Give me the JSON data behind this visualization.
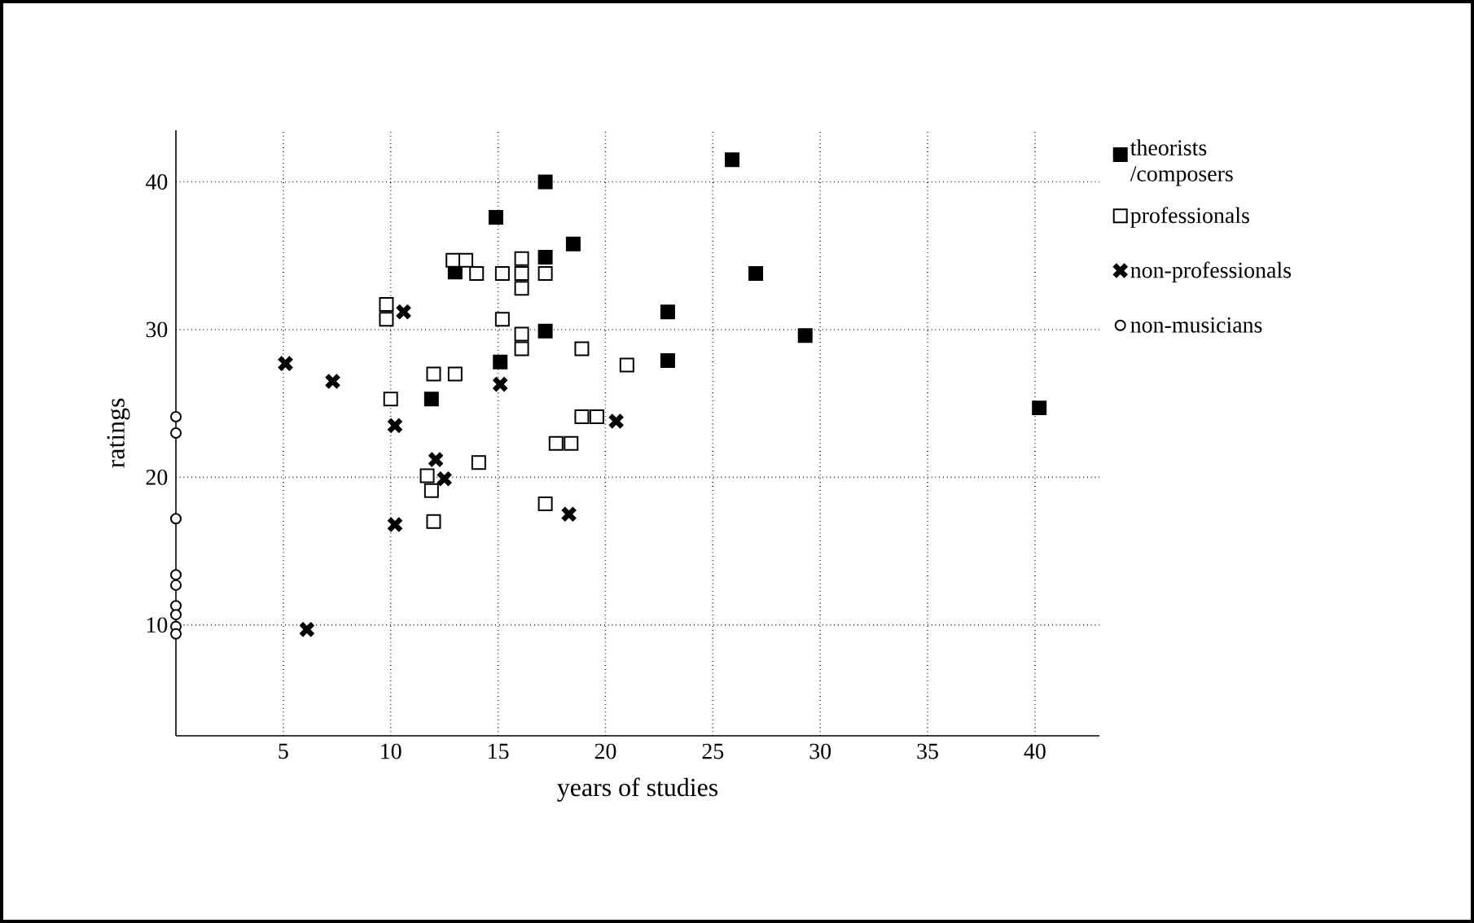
{
  "chart_data": {
    "type": "scatter",
    "xlabel": "years of studies",
    "ylabel": "ratings",
    "xlim": [
      0,
      43
    ],
    "ylim": [
      2.5,
      43.5
    ],
    "xticks": [
      5,
      10,
      15,
      20,
      25,
      30,
      35,
      40
    ],
    "yticks": [
      10,
      20,
      30,
      40
    ],
    "grid": true,
    "legend": "right",
    "series": [
      {
        "name": "theorists /composers",
        "color": "#000000",
        "marker": "square",
        "x": [
          14.9,
          13.0,
          11.9,
          17.2,
          18.5,
          17.2,
          25.9,
          27.0,
          22.9,
          17.2,
          22.9,
          15.1,
          29.3,
          40.2
        ],
        "values": [
          37.6,
          33.9,
          25.3,
          40.0,
          35.8,
          34.9,
          41.5,
          33.8,
          31.2,
          29.9,
          27.9,
          27.8,
          29.6,
          24.7
        ]
      },
      {
        "name": "professionals",
        "color": "#ffffff",
        "marker": "square",
        "x": [
          12.9,
          13.5,
          14.0,
          15.2,
          9.8,
          9.8,
          15.2,
          12.0,
          13.0,
          10.0,
          14.1,
          11.7,
          11.9,
          12.0,
          16.1,
          16.1,
          17.2,
          16.1,
          16.1,
          16.1,
          18.9,
          21.0,
          18.9,
          19.6,
          17.7,
          18.4,
          17.2
        ],
        "values": [
          34.7,
          34.7,
          33.8,
          33.8,
          31.7,
          30.7,
          30.7,
          27.0,
          27.0,
          25.3,
          21.0,
          20.1,
          19.1,
          17.0,
          34.8,
          33.8,
          33.8,
          32.8,
          29.7,
          28.7,
          28.7,
          27.6,
          24.1,
          24.1,
          22.3,
          22.3,
          18.2
        ]
      },
      {
        "name": "non-professionals",
        "color": "#000000",
        "marker": "cross",
        "x": [
          10.6,
          5.1,
          7.3,
          10.2,
          12.1,
          12.5,
          10.2,
          6.1,
          20.5,
          18.3,
          15.1
        ],
        "values": [
          31.2,
          27.7,
          26.5,
          23.5,
          21.2,
          19.9,
          16.8,
          9.7,
          23.8,
          17.5,
          26.3
        ]
      },
      {
        "name": "non-musicians",
        "color": "#ffffff",
        "marker": "circle",
        "x": [
          0,
          0,
          0,
          0,
          0,
          0,
          0,
          0,
          0
        ],
        "values": [
          24.1,
          23.0,
          17.2,
          13.4,
          12.7,
          11.3,
          10.7,
          9.9,
          9.4
        ]
      }
    ]
  }
}
